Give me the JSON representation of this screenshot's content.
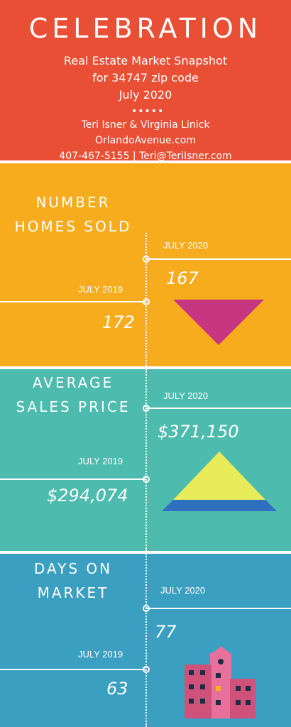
{
  "header": {
    "title": "CELEBRATION",
    "subtitle_line1": "Real Estate Market Snapshot",
    "subtitle_line2": "for 34747 zip code",
    "subtitle_line3": "July 2020",
    "dots": "•••••",
    "agents": "Teri Isner & Virginia Linick",
    "website": "OrlandoAvenue.com",
    "contact": "407-467-5155 | Teri@TeriIsner.com",
    "background_color": "#e94f35"
  },
  "homes_sold": {
    "label_line1": "NUMBER",
    "label_line2": "HOMES SOLD",
    "current_period": "JULY 2020",
    "current_value": "167",
    "previous_period": "JULY 2019",
    "previous_value": "172",
    "trend_icon": "down-triangle-icon",
    "background_color": "#f7ac1d",
    "icon_color": "#c73680"
  },
  "sales_price": {
    "label_line1": "AVERAGE",
    "label_line2": "SALES PRICE",
    "current_period": "JULY 2020",
    "current_value": "$371,150",
    "previous_period": "JULY 2019",
    "previous_value": "$294,074",
    "trend_icon": "up-triangle-icon",
    "background_color": "#4dbbae",
    "icon_colors": [
      "#e9ec5a",
      "#2f6fbf"
    ]
  },
  "days_on_market": {
    "label_line1": "DAYS ON",
    "label_line2": "MARKET",
    "current_period": "JULY 2020",
    "current_value": "77",
    "previous_period": "JULY 2019",
    "previous_value": "63",
    "trend_icon": "building-icon",
    "background_color": "#3a9fc0",
    "icon_colors": [
      "#e8709a",
      "#cf527b",
      "#1f2a44",
      "#f6b41f"
    ]
  }
}
